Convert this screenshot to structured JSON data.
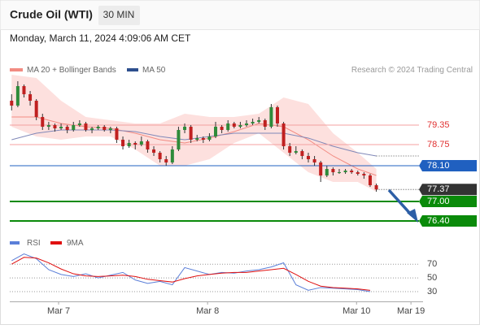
{
  "chart_data": {
    "type": "candlestick",
    "title": "Crude Oil (WTI)",
    "interval": "30 MIN",
    "timestamp": "Monday, March 11, 2024 4:09:06 AM CET",
    "source": "Research © 2024 Trading Central",
    "candle_up_color": "#2e8b3a",
    "candle_down_color": "#c02020",
    "xlim": [
      -0.3,
      65.9
    ],
    "ylim": [
      76.1,
      80.8
    ],
    "xticks": [
      {
        "value": 7.6,
        "label": "Mar 7"
      },
      {
        "value": 31.7,
        "label": "Mar 8"
      },
      {
        "value": 55.8,
        "label": "Mar 10"
      },
      {
        "value": 64.6,
        "label": "Mar 19"
      }
    ],
    "candles": [
      [
        80.1,
        80.3,
        79.8,
        79.95
      ],
      [
        79.95,
        80.7,
        79.9,
        80.55
      ],
      [
        80.55,
        80.6,
        80.2,
        80.3
      ],
      [
        80.3,
        80.4,
        79.95,
        80.1
      ],
      [
        80.1,
        80.15,
        79.5,
        79.6
      ],
      [
        79.6,
        79.7,
        79.2,
        79.3
      ],
      [
        79.3,
        79.45,
        79.2,
        79.35
      ],
      [
        79.35,
        79.4,
        79.15,
        79.25
      ],
      [
        79.25,
        79.4,
        79.2,
        79.3
      ],
      [
        79.3,
        79.35,
        79.1,
        79.2
      ],
      [
        79.2,
        79.45,
        79.15,
        79.35
      ],
      [
        79.35,
        79.5,
        79.3,
        79.4
      ],
      [
        79.4,
        79.45,
        79.15,
        79.2
      ],
      [
        79.2,
        79.3,
        79.1,
        79.25
      ],
      [
        79.25,
        79.35,
        79.2,
        79.3
      ],
      [
        79.3,
        79.35,
        79.15,
        79.2
      ],
      [
        79.2,
        79.3,
        79.1,
        79.25
      ],
      [
        79.25,
        79.3,
        78.8,
        78.9
      ],
      [
        78.9,
        79.0,
        78.6,
        78.7
      ],
      [
        78.7,
        78.9,
        78.65,
        78.8
      ],
      [
        78.8,
        78.85,
        78.6,
        78.75
      ],
      [
        78.75,
        79.0,
        78.7,
        78.85
      ],
      [
        78.85,
        78.9,
        78.5,
        78.6
      ],
      [
        78.6,
        78.7,
        78.4,
        78.5
      ],
      [
        78.5,
        78.55,
        78.2,
        78.3
      ],
      [
        78.3,
        78.4,
        78.1,
        78.2
      ],
      [
        78.2,
        78.7,
        78.15,
        78.6
      ],
      [
        78.6,
        79.3,
        78.55,
        79.2
      ],
      [
        79.2,
        79.4,
        79.1,
        79.3
      ],
      [
        79.3,
        79.35,
        78.8,
        78.9
      ],
      [
        78.9,
        79.05,
        78.85,
        78.95
      ],
      [
        78.95,
        79.0,
        78.8,
        78.9
      ],
      [
        78.9,
        79.1,
        78.85,
        79.0
      ],
      [
        79.0,
        79.45,
        78.95,
        79.3
      ],
      [
        79.3,
        79.35,
        79.1,
        79.2
      ],
      [
        79.2,
        79.5,
        79.15,
        79.4
      ],
      [
        79.4,
        79.45,
        79.25,
        79.3
      ],
      [
        79.3,
        79.45,
        79.25,
        79.35
      ],
      [
        79.35,
        79.5,
        79.3,
        79.4
      ],
      [
        79.4,
        79.55,
        79.35,
        79.45
      ],
      [
        79.45,
        79.6,
        79.4,
        79.5
      ],
      [
        79.5,
        79.55,
        79.2,
        79.3
      ],
      [
        79.3,
        80.0,
        79.25,
        79.9
      ],
      [
        79.9,
        79.95,
        79.3,
        79.4
      ],
      [
        79.4,
        79.45,
        78.6,
        78.7
      ],
      [
        78.7,
        78.8,
        78.4,
        78.5
      ],
      [
        78.5,
        78.7,
        78.45,
        78.55
      ],
      [
        78.55,
        78.6,
        78.3,
        78.4
      ],
      [
        78.4,
        78.5,
        78.2,
        78.3
      ],
      [
        78.3,
        78.4,
        78.1,
        78.2
      ],
      [
        78.2,
        78.25,
        77.6,
        77.8
      ],
      [
        77.8,
        78.1,
        77.75,
        78.0
      ],
      [
        78.0,
        78.05,
        77.8,
        77.9
      ],
      [
        77.9,
        78.0,
        77.85,
        77.9
      ],
      [
        77.9,
        78.0,
        77.85,
        77.95
      ],
      [
        77.95,
        78.0,
        77.85,
        77.9
      ],
      [
        77.9,
        77.95,
        77.8,
        77.85
      ],
      [
        77.85,
        77.9,
        77.7,
        77.8
      ],
      [
        77.8,
        77.85,
        77.45,
        77.5
      ],
      [
        77.5,
        77.55,
        77.3,
        77.37
      ]
    ],
    "indicators": {
      "x": [
        0,
        4,
        8,
        12,
        16,
        20,
        24,
        28,
        32,
        36,
        40,
        44,
        48,
        52,
        56,
        59
      ],
      "bands": {
        "name": "MA 20 + Bollinger Bands",
        "color": "#f28b82",
        "fill": "#fde0de",
        "upper": [
          80.9,
          80.8,
          80.1,
          79.6,
          79.5,
          79.4,
          79.4,
          79.7,
          79.6,
          79.6,
          79.7,
          80.2,
          80.0,
          79.1,
          78.5,
          78.0
        ],
        "lower": [
          79.3,
          79.0,
          78.9,
          79.0,
          79.0,
          78.6,
          78.1,
          78.1,
          78.3,
          78.8,
          79.1,
          78.5,
          77.9,
          77.6,
          77.6,
          77.3
        ],
        "values": [
          79.6,
          79.6,
          79.4,
          79.3,
          79.25,
          79.1,
          78.9,
          78.8,
          78.95,
          79.15,
          79.4,
          79.3,
          78.9,
          78.4,
          78.0,
          77.8
        ]
      },
      "ma50": {
        "name": "MA 50",
        "color": "#8088b8",
        "legend_color": "#2d4f8e",
        "values": [
          78.9,
          79.1,
          79.2,
          79.2,
          79.2,
          79.15,
          79.0,
          78.9,
          79.0,
          79.1,
          79.1,
          79.1,
          78.95,
          78.7,
          78.5,
          78.4
        ]
      }
    },
    "levels": [
      {
        "value": 79.35,
        "label": "79.35",
        "color": "#e03030",
        "kind": "resistance"
      },
      {
        "value": 78.75,
        "label": "78.75",
        "color": "#e03030",
        "kind": "resistance"
      },
      {
        "value": 78.1,
        "label": "78.10",
        "color": "#2060c0",
        "kind": "pivot"
      },
      {
        "value": 77.37,
        "label": "77.37",
        "color": "#333333",
        "kind": "price"
      },
      {
        "value": 77.0,
        "label": "77.00",
        "color": "#0a8a0a",
        "kind": "support"
      },
      {
        "value": 76.4,
        "label": "76.40",
        "color": "#0a8a0a",
        "kind": "support"
      }
    ],
    "rsi": {
      "ylim": [
        17,
        88
      ],
      "yticks": [
        70,
        50,
        30
      ],
      "x": [
        0,
        2,
        4,
        6,
        8,
        10,
        12,
        14,
        16,
        18,
        20,
        22,
        24,
        26,
        28,
        30,
        32,
        34,
        36,
        38,
        40,
        42,
        44,
        46,
        48,
        50,
        52,
        54,
        56,
        58
      ],
      "series": [
        {
          "name": "RSI",
          "color": "#5b7fd8",
          "values": [
            75,
            85,
            78,
            62,
            55,
            52,
            56,
            50,
            54,
            58,
            47,
            42,
            45,
            40,
            65,
            60,
            55,
            58,
            57,
            60,
            62,
            66,
            72,
            40,
            32,
            36,
            35,
            34,
            33,
            30
          ]
        },
        {
          "name": "9MA",
          "color": "#e01010",
          "values": [
            70,
            80,
            79,
            72,
            63,
            56,
            53,
            52,
            53,
            54,
            52,
            48,
            46,
            44,
            49,
            53,
            55,
            57,
            58,
            58,
            60,
            62,
            64,
            55,
            45,
            38,
            36,
            35,
            34,
            32
          ]
        }
      ]
    }
  }
}
